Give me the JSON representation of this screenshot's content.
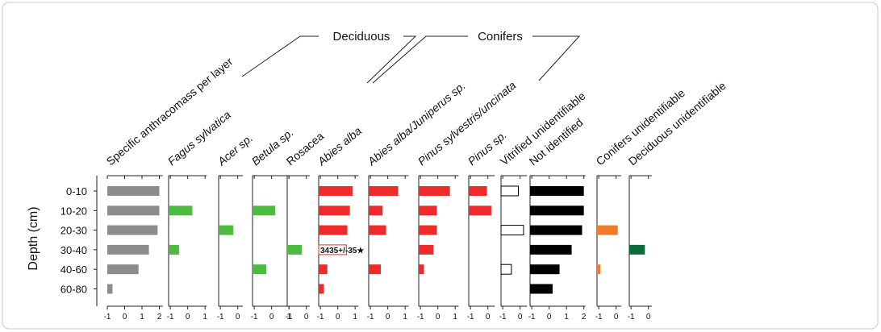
{
  "chart_data": {
    "type": "bar",
    "orientation": "horizontal",
    "y_label": "Depth (cm)",
    "categories": [
      "0-10",
      "10-20",
      "20-30",
      "30-40",
      "40-60",
      "60-80"
    ],
    "groups": [
      "Deciduous",
      "Conifers"
    ],
    "series": [
      {
        "name": "Specific anthracomass per layer",
        "italic": false,
        "color": "#8c8c8c",
        "xlim": [
          -1,
          2.2
        ],
        "xticks": [
          -1,
          0,
          1,
          2
        ],
        "values": [
          2,
          2,
          1.9,
          1.4,
          0.8,
          -0.7
        ]
      },
      {
        "name": "Fagus sylvatica",
        "italic": true,
        "color": "#4cbb3f",
        "xlim": [
          -1.1,
          1.1
        ],
        "xticks": [
          -1,
          0,
          1
        ],
        "values": [
          null,
          0.27,
          null,
          -0.5,
          null,
          null
        ]
      },
      {
        "name": "Acer sp.",
        "italic": true,
        "color": "#4cbb3f",
        "xlim": [
          -1.1,
          0.3
        ],
        "xticks": [
          -1,
          0
        ],
        "values": [
          null,
          null,
          -0.25,
          null,
          null,
          null
        ]
      },
      {
        "name": "Betula sp.",
        "italic": true,
        "color": "#4cbb3f",
        "xlim": [
          -1.1,
          1.2
        ],
        "xticks": [
          -1,
          0,
          1
        ],
        "values": [
          null,
          0.2,
          null,
          null,
          -0.3,
          null
        ]
      },
      {
        "name": "Rosacea",
        "italic": false,
        "color": "#4cbb3f",
        "xlim": [
          -1.1,
          0.2
        ],
        "xticks": [
          -1,
          0
        ],
        "values": [
          null,
          null,
          null,
          -0.25,
          null,
          null
        ]
      },
      {
        "name": "Abies alba",
        "italic": true,
        "color": "#ee2a2a",
        "xlim": [
          -1.1,
          1.2
        ],
        "xticks": [
          -1,
          0,
          1
        ],
        "values": [
          0.85,
          0.7,
          0.55,
          0.5,
          -0.6,
          -0.8
        ],
        "notes": [
          null,
          null,
          null,
          "3435+/-35★",
          null,
          null
        ]
      },
      {
        "name": "Abies alba/Juniperus sp.",
        "italic": true,
        "color": "#ee2a2a",
        "xlim": [
          -1.1,
          1.2
        ],
        "xticks": [
          -1,
          0,
          1
        ],
        "values": [
          0.6,
          -0.3,
          -0.1,
          null,
          -0.4,
          null
        ]
      },
      {
        "name": "Pinus sylvestris/uncinata",
        "italic": true,
        "color": "#ee2a2a",
        "xlim": [
          -1.1,
          1.2
        ],
        "xticks": [
          -1,
          0,
          1
        ],
        "values": [
          0.7,
          -0.05,
          -0.05,
          -0.25,
          -0.8,
          null
        ]
      },
      {
        "name": "Pinus sp.",
        "italic": true,
        "color": "#ee2a2a",
        "xlim": [
          -1.1,
          0.4
        ],
        "xticks": [
          -1,
          0
        ],
        "values": [
          -0.05,
          0.2,
          null,
          null,
          null,
          null
        ]
      },
      {
        "name": "Vitrified unidentifiable",
        "italic": false,
        "color": "#ffffff",
        "edgecolor": "#000000",
        "xlim": [
          -1.1,
          0.4
        ],
        "xticks": [
          -1,
          0
        ],
        "values": [
          -0.1,
          null,
          0.2,
          null,
          -0.5,
          null
        ]
      },
      {
        "name": "Not identified",
        "italic": false,
        "color": "#000000",
        "xlim": [
          -1.1,
          2.1
        ],
        "xticks": [
          -1,
          0,
          1,
          2
        ],
        "values": [
          2,
          2,
          1.9,
          1.3,
          0.6,
          0.2
        ]
      },
      {
        "name": "Conifers unidentifiable",
        "italic": false,
        "color": "#f07c2a",
        "xlim": [
          -1.1,
          0.3
        ],
        "xticks": [
          -1,
          0
        ],
        "values": [
          null,
          null,
          0.1,
          null,
          -0.9,
          null
        ]
      },
      {
        "name": "Deciduous  unidentifiable",
        "italic": false,
        "color": "#0c6b3a",
        "xlim": [
          -1.1,
          0.2
        ],
        "xticks": [
          -1,
          0
        ],
        "values": [
          null,
          null,
          null,
          -0.2,
          null,
          null
        ]
      }
    ]
  }
}
